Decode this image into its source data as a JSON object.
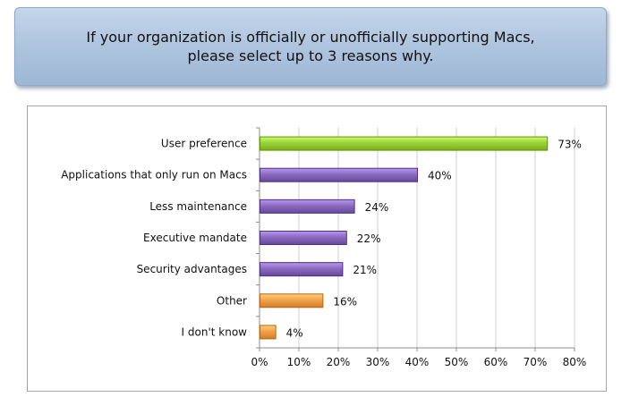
{
  "banner": {
    "title": "If your organization is officially or unofficially supporting Macs, please select up to 3 reasons why."
  },
  "colors": {
    "green": "#9bd13a",
    "purple": "#8a6bbf",
    "orange": "#f2a24b"
  },
  "chart_data": {
    "type": "bar",
    "orientation": "horizontal",
    "categories": [
      "User preference",
      "Applications that only run on Macs",
      "Less maintenance",
      "Executive mandate",
      "Security advantages",
      "Other",
      "I don't know"
    ],
    "values": [
      73,
      40,
      24,
      22,
      21,
      16,
      4
    ],
    "value_labels": [
      "73%",
      "40%",
      "24%",
      "22%",
      "21%",
      "16%",
      "4%"
    ],
    "bar_colors": [
      "green",
      "purple",
      "purple",
      "purple",
      "purple",
      "orange",
      "orange"
    ],
    "xlim": [
      0,
      80
    ],
    "xticks": [
      "0%",
      "10%",
      "20%",
      "30%",
      "40%",
      "50%",
      "60%",
      "70%",
      "80%"
    ],
    "title": "",
    "xlabel": "",
    "ylabel": "",
    "grid": true,
    "legend": "none"
  }
}
